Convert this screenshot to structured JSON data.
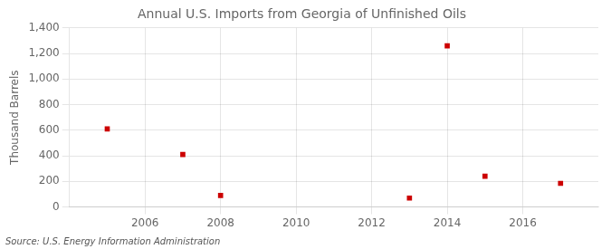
{
  "chart_data": {
    "type": "scatter",
    "title": "Annual U.S. Imports from Georgia of Unfinished Oils",
    "ylabel": "Thousand Barrels",
    "source": "Source: U.S. Energy Information Administration",
    "x": [
      2005,
      2007,
      2008,
      2013,
      2014,
      2015,
      2017
    ],
    "values": [
      610,
      410,
      90,
      70,
      1260,
      240,
      185
    ],
    "color": "#cc0000",
    "marker": "square",
    "xlim": [
      2004,
      2018
    ],
    "xticks": [
      2006,
      2008,
      2010,
      2012,
      2014,
      2016
    ],
    "ylim": [
      0,
      1400
    ],
    "yticks": [
      0,
      200,
      400,
      600,
      800,
      {
        "value": 1000,
        "label": "1,000"
      },
      {
        "value": 1200,
        "label": "1,200"
      },
      {
        "value": 1400,
        "label": "1,400"
      }
    ],
    "grid": true
  }
}
